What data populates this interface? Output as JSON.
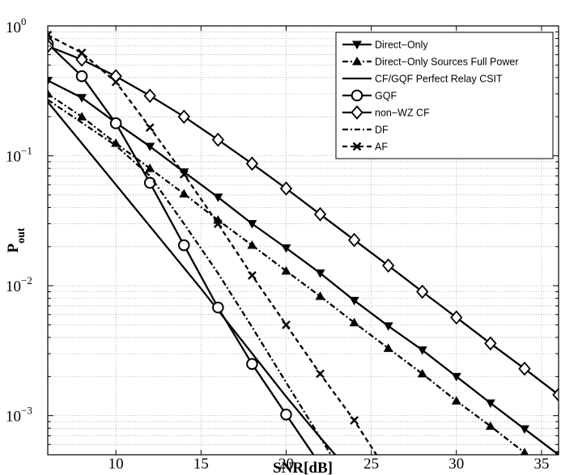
{
  "chart_data": {
    "type": "line",
    "xlabel": "SNR[dB]",
    "ylabel": "P",
    "ylabel_sub": "out",
    "xlim": [
      6,
      36
    ],
    "ylim": [
      0.0005,
      1
    ],
    "y_scale": "log",
    "grid": true,
    "legend_position": "top-right",
    "x_tick_labels": [
      "10",
      "15",
      "20",
      "25",
      "30",
      "35"
    ],
    "y_tick_labels": [
      {
        "base": "10",
        "exp": "0"
      },
      {
        "base": "10",
        "exp": "−1"
      },
      {
        "base": "10",
        "exp": "−2"
      },
      {
        "base": "10",
        "exp": "−3"
      }
    ],
    "series": [
      {
        "name": "Direct−Only",
        "style": "solid",
        "marker": "triangle-down",
        "x": [
          6,
          8,
          10,
          12,
          14,
          16,
          18,
          20,
          22,
          24,
          26,
          28,
          30,
          32,
          34,
          36
        ],
        "y": [
          0.38,
          0.28,
          0.18,
          0.118,
          0.075,
          0.048,
          0.03,
          0.0195,
          0.0125,
          0.0077,
          0.0049,
          0.0032,
          0.002,
          0.00125,
          0.00079,
          0.0005
        ]
      },
      {
        "name": "Direct−Only Sources Full Power",
        "style": "dashdot",
        "marker": "triangle-up",
        "x": [
          6,
          8,
          10,
          12,
          14,
          16,
          18,
          20,
          22,
          24,
          26,
          28,
          30,
          32,
          34,
          36
        ],
        "y": [
          0.3,
          0.2,
          0.125,
          0.08,
          0.051,
          0.032,
          0.0205,
          0.013,
          0.0083,
          0.0052,
          0.0033,
          0.0021,
          0.0013,
          0.00083,
          0.00052,
          0.00033
        ]
      },
      {
        "name": "CF/GQF Perfect Relay CSIT",
        "style": "solid",
        "marker": "none",
        "x": [
          6,
          10,
          15,
          20,
          22,
          24
        ],
        "y": [
          0.26,
          0.06,
          0.0095,
          0.0014,
          0.00068,
          0.00034
        ]
      },
      {
        "name": "GQF",
        "style": "solid",
        "marker": "circle",
        "x": [
          6,
          8,
          10,
          12,
          14,
          16,
          18,
          20,
          22
        ],
        "y": [
          0.73,
          0.41,
          0.178,
          0.062,
          0.0205,
          0.0068,
          0.0025,
          0.00102,
          0.00042
        ]
      },
      {
        "name": "non−WZ CF",
        "style": "solid",
        "marker": "diamond",
        "x": [
          6,
          8,
          10,
          12,
          14,
          16,
          18,
          20,
          22,
          24,
          26,
          28,
          30,
          32,
          34,
          36
        ],
        "y": [
          0.7,
          0.55,
          0.41,
          0.29,
          0.2,
          0.133,
          0.087,
          0.056,
          0.0355,
          0.0225,
          0.0143,
          0.009,
          0.0057,
          0.0036,
          0.0023,
          0.00145
        ]
      },
      {
        "name": "DF",
        "style": "dashdot",
        "marker": "none",
        "x": [
          6,
          8,
          10,
          12,
          14,
          16,
          18,
          20,
          22,
          24
        ],
        "y": [
          0.27,
          0.18,
          0.12,
          0.07,
          0.03,
          0.0125,
          0.0048,
          0.0018,
          0.00068,
          0.00026
        ]
      },
      {
        "name": "AF",
        "style": "dashed",
        "marker": "x",
        "x": [
          6,
          8,
          10,
          12,
          14,
          16,
          18,
          20,
          22,
          24,
          26
        ],
        "y": [
          0.85,
          0.62,
          0.37,
          0.165,
          0.072,
          0.03,
          0.012,
          0.005,
          0.0021,
          0.00092,
          0.00036
        ]
      }
    ]
  }
}
